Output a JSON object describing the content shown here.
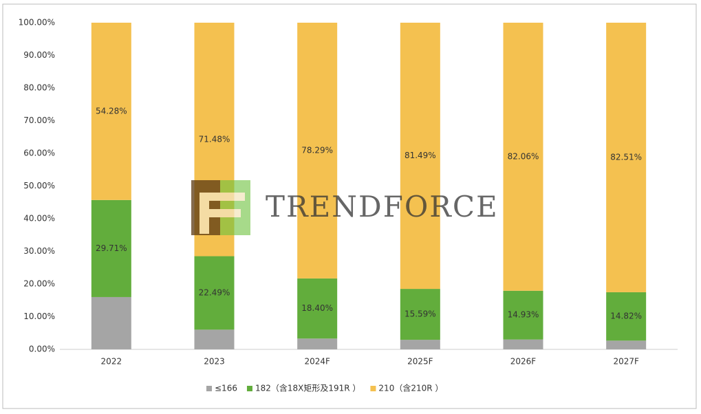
{
  "chart_data": {
    "type": "stacked_bar",
    "categories": [
      "2022",
      "2023",
      "2024F",
      "2025F",
      "2026F",
      "2027F"
    ],
    "series": [
      {
        "name": "≤166",
        "color": "#a5a5a5",
        "values": [
          16.01,
          6.03,
          3.31,
          2.92,
          3.01,
          2.67
        ]
      },
      {
        "name": "182（含18X矩形及191R ）",
        "color": "#62ad3c",
        "values": [
          29.71,
          22.49,
          18.4,
          15.59,
          14.93,
          14.82
        ],
        "value_labels": [
          "29.71%",
          "22.49%",
          "18.40%",
          "15.59%",
          "14.93%",
          "14.82%"
        ]
      },
      {
        "name": "210（含210R ）",
        "color": "#f4c150",
        "values": [
          54.28,
          71.48,
          78.29,
          81.49,
          82.06,
          82.51
        ],
        "value_labels": [
          "54.28%",
          "71.48%",
          "78.29%",
          "81.49%",
          "82.06%",
          "82.51%"
        ]
      }
    ],
    "ylim": [
      0,
      100
    ],
    "yticks": [
      {
        "value": 0,
        "label": "0.00%"
      },
      {
        "value": 10,
        "label": "10.00%"
      },
      {
        "value": 20,
        "label": "20.00%"
      },
      {
        "value": 30,
        "label": "30.00%"
      },
      {
        "value": 40,
        "label": "40.00%"
      },
      {
        "value": 50,
        "label": "50.00%"
      },
      {
        "value": 60,
        "label": "60.00%"
      },
      {
        "value": 70,
        "label": "70.00%"
      },
      {
        "value": 80,
        "label": "80.00%"
      },
      {
        "value": 90,
        "label": "90.00%"
      },
      {
        "value": 100,
        "label": "100.00%"
      }
    ],
    "legend": "bottom",
    "watermark": "TRENDFORCE"
  }
}
